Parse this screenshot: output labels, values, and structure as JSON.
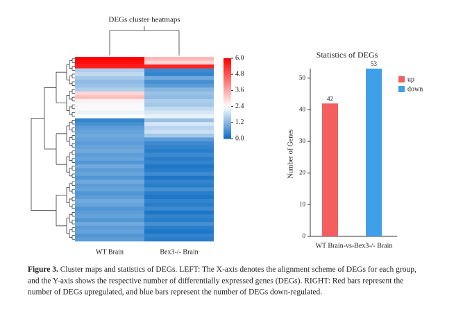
{
  "chart_data": [
    {
      "type": "heatmap",
      "title": "DEGs cluster heatmaps",
      "columns": [
        "WT Brain",
        "Bex3-/- Brain"
      ],
      "colormap": [
        "#0a6bc3",
        "#ffffff",
        "#ff0000"
      ],
      "clim": [
        0,
        6
      ],
      "cmid": 2.4,
      "cticks": [
        {
          "value": 0,
          "label": "0.0"
        },
        1.2,
        2.4,
        3.6,
        4.8,
        {
          "value": 6,
          "label": "6.0"
        }
      ],
      "values": [
        [
          6.0,
          3.4
        ],
        [
          5.8,
          3.0
        ],
        [
          5.6,
          5.5
        ],
        [
          1.6,
          0.5
        ],
        [
          1.8,
          0.4
        ],
        [
          1.5,
          1.0
        ],
        [
          1.3,
          0.6
        ],
        [
          1.4,
          0.8
        ],
        [
          1.6,
          1.2
        ],
        [
          3.0,
          1.4
        ],
        [
          3.3,
          1.3
        ],
        [
          2.6,
          1.6
        ],
        [
          2.3,
          1.5
        ],
        [
          2.5,
          1.8
        ],
        [
          2.2,
          2.0
        ],
        [
          2.4,
          2.2
        ],
        [
          0.4,
          1.4
        ],
        [
          0.6,
          2.0
        ],
        [
          0.8,
          1.7
        ],
        [
          0.9,
          1.9
        ],
        [
          1.0,
          1.5
        ],
        [
          0.9,
          0.8
        ],
        [
          0.8,
          0.5
        ],
        [
          0.9,
          0.4
        ],
        [
          1.0,
          0.3
        ],
        [
          0.8,
          0.5
        ],
        [
          0.9,
          0.3
        ],
        [
          0.7,
          0.4
        ],
        [
          1.0,
          0.2
        ],
        [
          0.8,
          0.3
        ],
        [
          0.9,
          0.5
        ],
        [
          0.7,
          0.2
        ],
        [
          1.0,
          0.4
        ],
        [
          0.8,
          0.3
        ],
        [
          0.9,
          0.6
        ],
        [
          0.7,
          0.3
        ],
        [
          0.8,
          0.2
        ],
        [
          1.0,
          0.4
        ],
        [
          0.9,
          0.3
        ],
        [
          0.7,
          0.5
        ],
        [
          0.8,
          0.2
        ],
        [
          0.9,
          0.4
        ],
        [
          0.7,
          0.3
        ],
        [
          1.0,
          0.6
        ],
        [
          0.8,
          0.3
        ],
        [
          0.9,
          0.2
        ],
        [
          0.7,
          0.4
        ],
        [
          0.8,
          0.3
        ]
      ]
    },
    {
      "type": "bar",
      "title": "Statistics of DEGs",
      "y_label": "Number of Genes",
      "categories": [
        "WT Brain-vs-Bex3-/- Brain"
      ],
      "series": [
        {
          "name": "up",
          "color": "#f35f5f",
          "values": [
            42
          ]
        },
        {
          "name": "down",
          "color": "#3fa0ea",
          "values": [
            53
          ]
        }
      ],
      "ylim": [
        0,
        53
      ],
      "yticks": [
        0,
        10,
        20,
        30,
        40,
        50
      ],
      "legend": "top-right"
    }
  ],
  "caption": {
    "label": "Figure 3.",
    "lines": [
      " Cluster maps and statistics of DEGs. LEFT: The X-axis denotes the alignment scheme of DEGs for each group,",
      "and the Y-axis shows the respective number of differentially expressed genes (DEGs). RIGHT: Red bars represent the",
      "number of DEGs upregulated, and blue bars represent the number of DEGs down-regulated."
    ]
  }
}
